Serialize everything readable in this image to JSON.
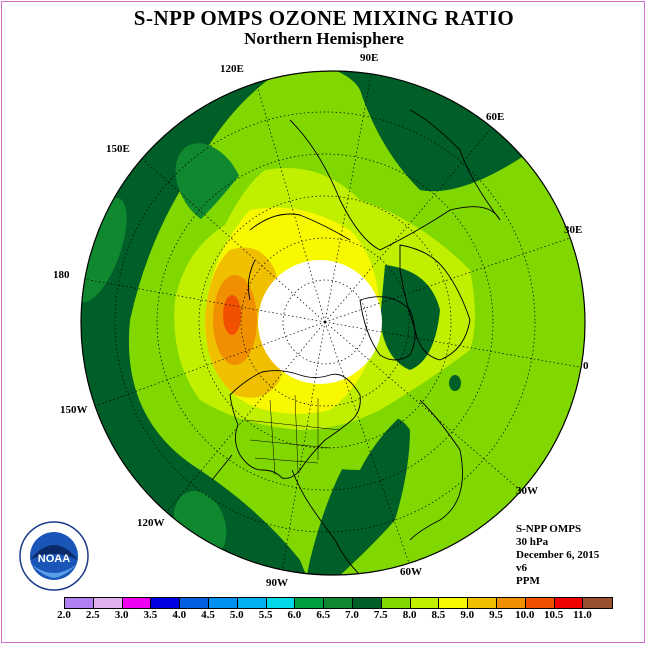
{
  "title": "S-NPP OMPS OZONE MIXING RATIO",
  "subtitle": "Northern Hemisphere",
  "longitude_labels": [
    {
      "id": "90e",
      "text": "90E"
    },
    {
      "id": "120e",
      "text": "120E"
    },
    {
      "id": "60e",
      "text": "60E"
    },
    {
      "id": "150e",
      "text": "150E"
    },
    {
      "id": "30e",
      "text": "30E"
    },
    {
      "id": "180",
      "text": "180"
    },
    {
      "id": "0",
      "text": "0"
    },
    {
      "id": "150w",
      "text": "150W"
    },
    {
      "id": "30w",
      "text": "30W"
    },
    {
      "id": "120w",
      "text": "120W"
    },
    {
      "id": "60w",
      "text": "60W"
    },
    {
      "id": "90w",
      "text": "90W"
    }
  ],
  "info": {
    "instrument": "S-NPP OMPS",
    "level": "30 hPa",
    "date": "December 6, 2015",
    "version": "v6",
    "units": "PPM"
  },
  "logo": {
    "text": "NOAA"
  },
  "colorbar": {
    "ticks": [
      "2.0",
      "2.5",
      "3.0",
      "3.5",
      "4.0",
      "4.5",
      "5.0",
      "5.5",
      "6.0",
      "6.5",
      "7.0",
      "7.5",
      "8.0",
      "8.5",
      "9.0",
      "9.5",
      "10.0",
      "10.5",
      "11.0"
    ],
    "colors": [
      "#b080f0",
      "#e0b0f0",
      "#f000f0",
      "#0000e0",
      "#0060e0",
      "#0090f0",
      "#00b0f0",
      "#00d8e8",
      "#00a040",
      "#108830",
      "#005e28",
      "#80d800",
      "#c0f000",
      "#f8f800",
      "#f0c000",
      "#f09000",
      "#f05000",
      "#f00000",
      "#985030"
    ]
  }
}
